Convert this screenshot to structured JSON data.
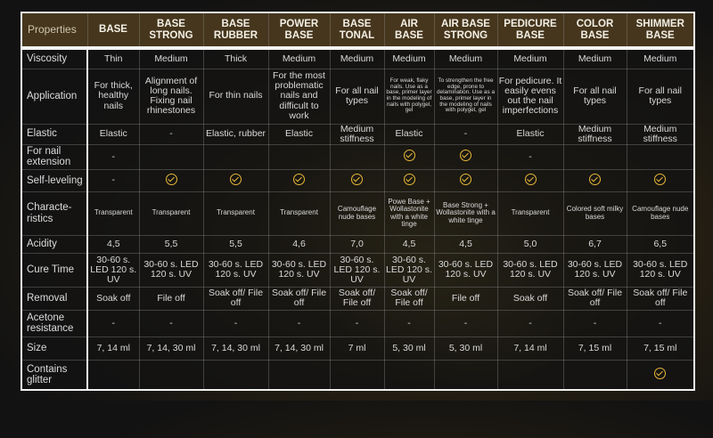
{
  "accent": "#e8b83a",
  "columns": [
    "Properties",
    "BASE",
    "BASE STRONG",
    "BASE RUBBER",
    "POWER BASE",
    "BASE TONAL",
    "AIR BASE",
    "AIR BASE STRONG",
    "PEDICURE BASE",
    "COLOR BASE",
    "SHIMMER BASE"
  ],
  "rows": [
    {
      "label": "Viscosity",
      "cells": [
        "Thin",
        "Medium",
        "Thick",
        "Medium",
        "Medium",
        "Medium",
        "Medium",
        "Medium",
        "Medium",
        "Medium"
      ]
    },
    {
      "label": "Application",
      "cells": [
        "For thick, healthy nails",
        "Alignment of long nails. Fixing nail rhinestones",
        "For thin nails",
        "For the most problematic nails and difficult to work",
        "For all nail types",
        "For weak, flaky nails.  Use as a base, primer layer in the modeling of nails with polygel, gel",
        "To strengthen the free edge, prone to delamination. Use as a base, primer layer in the modeling of nails with polygel, gel",
        "For pedicure. It easily evens out the nail imperfections",
        "For all nail types",
        "For all nail types"
      ]
    },
    {
      "label": "Elastic",
      "cells": [
        "Elastic",
        "-",
        "Elastic, rubber",
        "Elastic",
        "Medium stiffness",
        "Elastic",
        "-",
        "Elastic",
        "Medium stiffness",
        "Medium stiffness"
      ]
    },
    {
      "label": "For nail extension",
      "cells": [
        "-",
        "",
        "",
        "",
        "",
        "check",
        "check",
        "-",
        "",
        ""
      ]
    },
    {
      "label": "Self-leveling",
      "cells": [
        "-",
        "check",
        "check",
        "check",
        "check",
        "check",
        "check",
        "check",
        "check",
        "check"
      ]
    },
    {
      "label": "Characte-ristics",
      "cells": [
        "Transparent",
        "Transparent",
        "Transparent",
        "Transparent",
        "Camouflage nude bases",
        "Powe Base + Wollastonite with a white tinge",
        "Base Strong + Wollastonite with a white tinge",
        "Transparent",
        "Colored soft milky bases",
        "Camouflage nude bases"
      ]
    },
    {
      "label": "Acidity",
      "cells": [
        "4,5",
        "5,5",
        "5,5",
        "4,6",
        "7,0",
        "4,5",
        "4,5",
        "5,0",
        "6,7",
        "6,5"
      ]
    },
    {
      "label": "Cure Time",
      "cells": [
        "30-60 s. LED 120 s. UV",
        "30-60 s. LED 120 s. UV",
        "30-60 s. LED 120 s. UV",
        "30-60 s. LED 120 s. UV",
        "30-60 s. LED 120 s. UV",
        "30-60 s. LED 120 s. UV",
        "30-60 s. LED 120 s. UV",
        "30-60 s. LED 120 s. UV",
        "30-60 s. LED 120 s. UV",
        "30-60 s. LED 120 s. UV"
      ]
    },
    {
      "label": "Removal",
      "cells": [
        "Soak off",
        "File off",
        "Soak off/ File off",
        "Soak off/ File off",
        "Soak off/ File off",
        "Soak off/ File off",
        "File off",
        "Soak off",
        "Soak off/ File off",
        "Soak off/ File off"
      ]
    },
    {
      "label": "Acetone resistance",
      "cells": [
        "-",
        "-",
        "-",
        "-",
        "-",
        "-",
        "-",
        "-",
        "-",
        "-"
      ]
    },
    {
      "label": "Size",
      "cells": [
        "7, 14 ml",
        "7, 14, 30 ml",
        "7, 14, 30 ml",
        "7, 14, 30 ml",
        "7 ml",
        "5, 30 ml",
        "5, 30 ml",
        "7, 14 ml",
        "7, 15 ml",
        "7, 15 ml"
      ]
    },
    {
      "label": "Contains glitter",
      "cells": [
        "",
        "",
        "",
        "",
        "",
        "",
        "",
        "",
        "",
        "check"
      ]
    }
  ]
}
